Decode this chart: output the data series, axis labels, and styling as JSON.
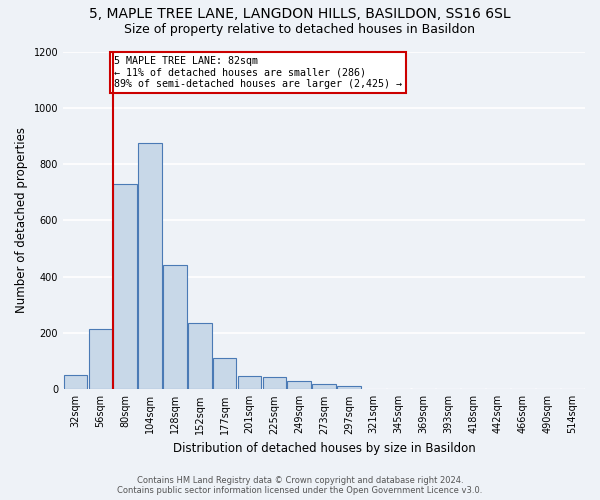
{
  "title_line1": "5, MAPLE TREE LANE, LANGDON HILLS, BASILDON, SS16 6SL",
  "title_line2": "Size of property relative to detached houses in Basildon",
  "xlabel": "Distribution of detached houses by size in Basildon",
  "ylabel": "Number of detached properties",
  "footer_line1": "Contains HM Land Registry data © Crown copyright and database right 2024.",
  "footer_line2": "Contains public sector information licensed under the Open Government Licence v3.0.",
  "bin_labels": [
    "32sqm",
    "56sqm",
    "80sqm",
    "104sqm",
    "128sqm",
    "152sqm",
    "177sqm",
    "201sqm",
    "225sqm",
    "249sqm",
    "273sqm",
    "297sqm",
    "321sqm",
    "345sqm",
    "369sqm",
    "393sqm",
    "418sqm",
    "442sqm",
    "466sqm",
    "490sqm",
    "514sqm"
  ],
  "bar_values": [
    50,
    215,
    730,
    875,
    440,
    235,
    110,
    47,
    43,
    30,
    20,
    10,
    0,
    0,
    0,
    0,
    0,
    0,
    0,
    0,
    0
  ],
  "bar_color": "#c8d8e8",
  "bar_edge_color": "#4a7ab5",
  "ylim": [
    0,
    1200
  ],
  "yticks": [
    0,
    200,
    400,
    600,
    800,
    1000,
    1200
  ],
  "property_line_x": 2,
  "annotation_text": "5 MAPLE TREE LANE: 82sqm\n← 11% of detached houses are smaller (286)\n89% of semi-detached houses are larger (2,425) →",
  "annotation_box_color": "#ffffff",
  "annotation_border_color": "#cc0000",
  "vline_color": "#cc0000",
  "background_color": "#eef2f7",
  "grid_color": "#ffffff",
  "title1_fontsize": 10,
  "title2_fontsize": 9,
  "xlabel_fontsize": 8.5,
  "ylabel_fontsize": 8.5,
  "tick_fontsize": 7,
  "footer_fontsize": 6
}
